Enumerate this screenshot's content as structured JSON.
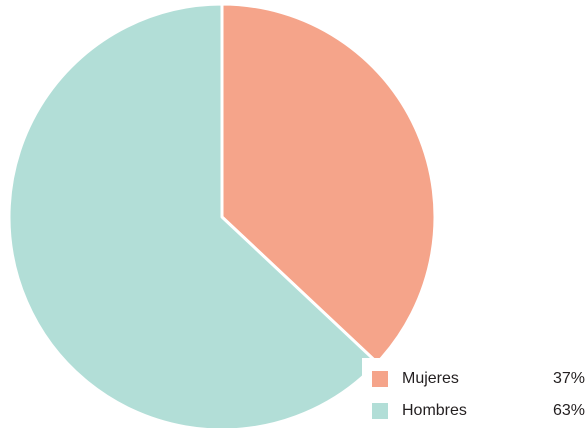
{
  "chart_data": {
    "type": "pie",
    "categories": [
      "Mujeres",
      "Hombres"
    ],
    "values": [
      37,
      63
    ],
    "value_labels": [
      "37%",
      "63%"
    ],
    "colors": [
      "#f5a48a",
      "#b2ded7"
    ],
    "start": "12 o'clock",
    "direction": "clockwise",
    "legend_position": "bottom-right"
  }
}
